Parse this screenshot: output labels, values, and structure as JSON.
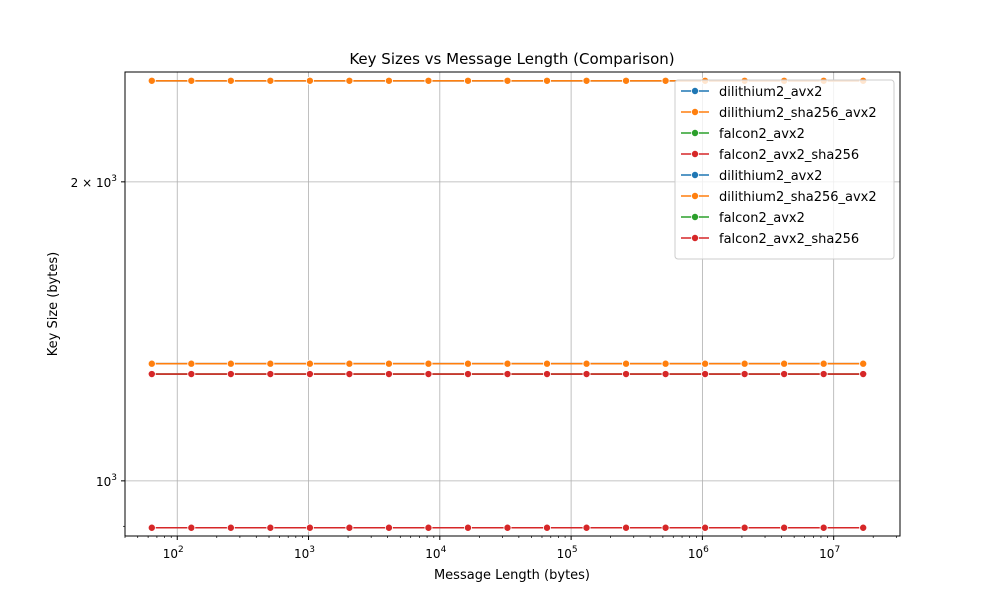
{
  "chart_data": {
    "type": "line",
    "title": "Key Sizes vs Message Length (Comparison)",
    "xlabel": "Message Length (bytes)",
    "ylabel": "Key Size (bytes)",
    "xscale": "log",
    "yscale": "log",
    "xlim": [
      40,
      32000000
    ],
    "ylim": [
      880,
      2580
    ],
    "x_tick_base": "10",
    "x_ticks": [
      {
        "value": 100,
        "exp": "2"
      },
      {
        "value": 1000,
        "exp": "3"
      },
      {
        "value": 10000,
        "exp": "4"
      },
      {
        "value": 100000,
        "exp": "5"
      },
      {
        "value": 1000000,
        "exp": "6"
      },
      {
        "value": 10000000,
        "exp": "7"
      }
    ],
    "y_ticks": [
      {
        "value": 1000,
        "base": "10",
        "exp": "3",
        "coef": ""
      },
      {
        "value": 2000,
        "base": "10",
        "exp": "3",
        "coef": "2 × "
      }
    ],
    "grid": true,
    "legend_position": "top-right",
    "x": [
      64,
      128,
      256,
      512,
      1024,
      2048,
      4096,
      8192,
      16384,
      32768,
      65536,
      131072,
      262144,
      524288,
      1048576,
      2097152,
      4194304,
      8388608,
      16777216
    ],
    "series": [
      {
        "name": "dilithium2_avx2",
        "color": "#1f77b4",
        "y": 1312
      },
      {
        "name": "dilithium2_sha256_avx2",
        "color": "#ff7f0e",
        "y": 1312
      },
      {
        "name": "falcon2_avx2",
        "color": "#2ca02c",
        "y": 897
      },
      {
        "name": "falcon2_avx2_sha256",
        "color": "#d62728",
        "y": 897
      },
      {
        "name": "dilithium2_avx2",
        "color": "#1f77b4",
        "y": 2528
      },
      {
        "name": "dilithium2_sha256_avx2",
        "color": "#ff7f0e",
        "y": 2528
      },
      {
        "name": "falcon2_avx2",
        "color": "#2ca02c",
        "y": 1281
      },
      {
        "name": "falcon2_avx2_sha256",
        "color": "#d62728",
        "y": 1281
      }
    ]
  }
}
